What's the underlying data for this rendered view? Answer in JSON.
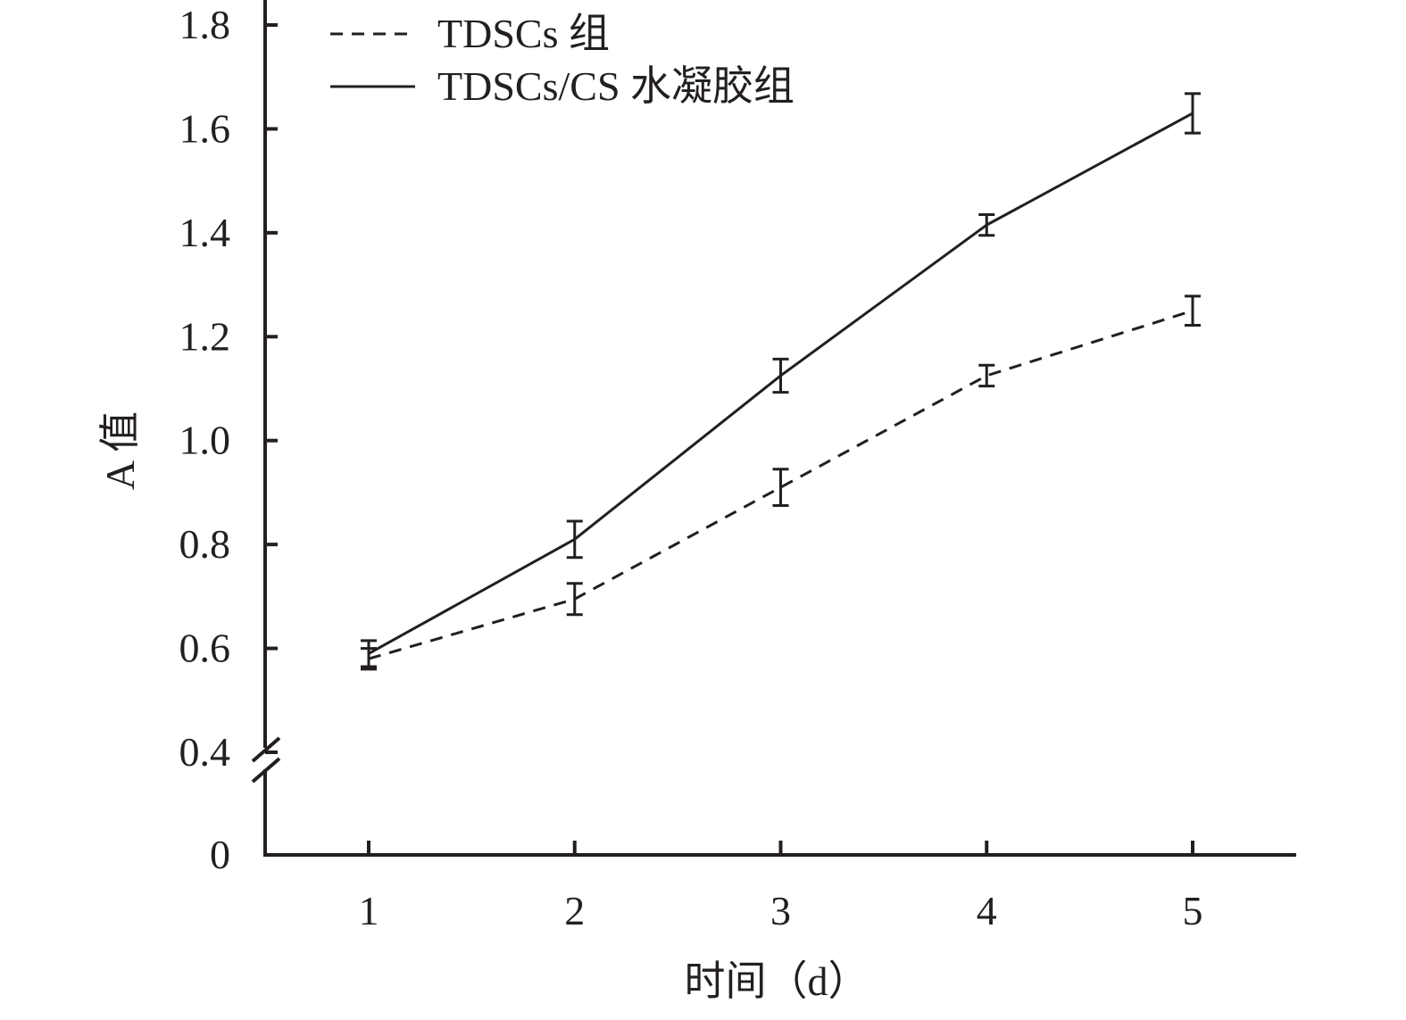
{
  "chart_data": {
    "type": "line",
    "title": "",
    "xlabel": "时间（d）",
    "ylabel": "A 值",
    "categories": [
      "1",
      "2",
      "3",
      "4",
      "5"
    ],
    "x": [
      1,
      2,
      3,
      4,
      5
    ],
    "xlim": [
      0.5,
      5.5
    ],
    "y_ticks": [
      "0",
      "0.4",
      "0.6",
      "0.8",
      "1.0",
      "1.2",
      "1.4",
      "1.6",
      "1.8"
    ],
    "ylim": [
      0.4,
      1.8
    ],
    "y_axis_break": true,
    "grid": false,
    "legend_position": "top-left",
    "series": [
      {
        "name": "TDSCs 组",
        "line_style": "dashed",
        "values": [
          0.58,
          0.695,
          0.91,
          1.125,
          1.25
        ],
        "errors": [
          0.02,
          0.03,
          0.035,
          0.02,
          0.028
        ]
      },
      {
        "name": "TDSCs/CS 水凝胶组",
        "line_style": "solid",
        "values": [
          0.59,
          0.81,
          1.125,
          1.415,
          1.63
        ],
        "errors": [
          0.025,
          0.035,
          0.032,
          0.02,
          0.038
        ]
      }
    ],
    "colors": {
      "line": "#231f20",
      "background": "#ffffff"
    }
  }
}
